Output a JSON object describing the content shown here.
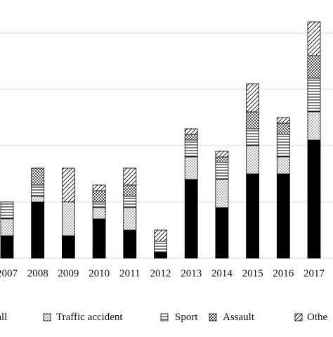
{
  "chart_data": {
    "type": "bar",
    "stacked": true,
    "categories": [
      "2007",
      "2008",
      "2009",
      "2010",
      "2011",
      "2012",
      "2013",
      "2014",
      "2015",
      "2016",
      "2017"
    ],
    "ylim": [
      0,
      45
    ],
    "grid": true,
    "legend_position": "bottom",
    "series": [
      {
        "name": "Fall",
        "pattern": "solid",
        "values": [
          4,
          10,
          4,
          7,
          5,
          1,
          14,
          9,
          15,
          15,
          21
        ]
      },
      {
        "name": "Traffic accident",
        "pattern": "dotted",
        "values": [
          3,
          1,
          6,
          2,
          4,
          0,
          4,
          5,
          5,
          3,
          5
        ]
      },
      {
        "name": "Sport",
        "pattern": "horizontal-lines",
        "values": [
          3,
          2,
          0,
          1,
          2,
          2,
          3,
          3,
          3,
          4,
          6
        ]
      },
      {
        "name": "Assault",
        "pattern": "checkered",
        "values": [
          0,
          3,
          0,
          2,
          2,
          0,
          1,
          1,
          3,
          2,
          4
        ]
      },
      {
        "name": "Other",
        "pattern": "diagonal-hatch",
        "values": [
          0,
          0,
          6,
          1,
          3,
          2,
          1,
          1,
          5,
          1,
          6
        ]
      }
    ],
    "legend_labels": [
      "Fall",
      "Traffic accident",
      "Sport",
      "Assault",
      "Othe"
    ],
    "colors": {
      "bar_fill": "#000000",
      "stroke": "#000000",
      "gridline": "#d9d9d9",
      "background": "#ffffff"
    }
  }
}
